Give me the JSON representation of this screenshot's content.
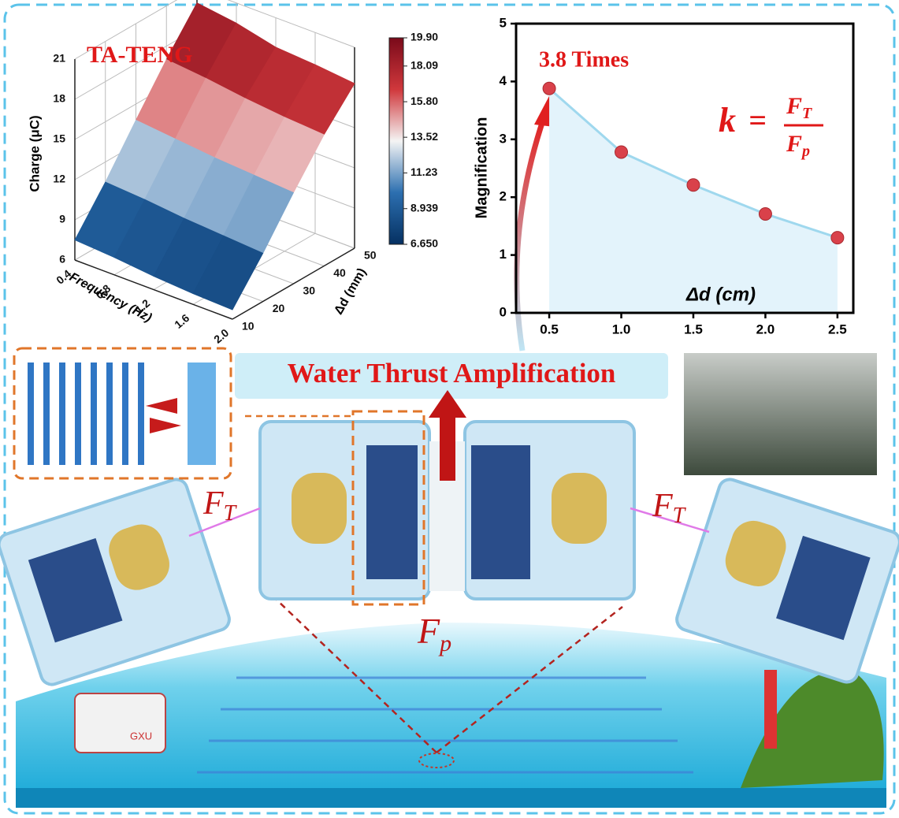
{
  "chart_data": [
    {
      "type": "surface",
      "title": "TA-TENG",
      "x_label": "Frequency (Hz)",
      "y_label": "Δd (mm)",
      "z_label": "Charge (μC)",
      "x": [
        0.4,
        0.8,
        1.2,
        1.6,
        2.0
      ],
      "y": [
        10,
        20,
        30,
        40,
        50
      ],
      "z": [
        [
          7.5,
          7.3,
          7.0,
          6.8,
          6.7
        ],
        [
          10.5,
          10.3,
          10.0,
          9.8,
          9.6
        ],
        [
          13.8,
          13.5,
          13.2,
          13.0,
          12.8
        ],
        [
          17.0,
          16.7,
          16.3,
          16.0,
          15.8
        ],
        [
          19.9,
          19.5,
          18.8,
          18.6,
          18.3
        ]
      ],
      "xlim": [
        0.4,
        2.0
      ],
      "ylim": [
        10,
        50
      ],
      "zlim": [
        6,
        21
      ],
      "xticks": [
        0.4,
        0.8,
        1.2,
        1.6,
        {
          "value": 2,
          "label": "2.0"
        }
      ],
      "yticks": [
        10,
        20,
        30,
        40,
        50
      ],
      "zticks": [
        6,
        9,
        12,
        15,
        18,
        21
      ],
      "clim": [
        6.65,
        19.9
      ],
      "cticks": [
        {
          "value": 19.9,
          "label": "19.90"
        },
        18.09,
        {
          "value": 15.8,
          "label": "15.80"
        },
        13.52,
        11.23,
        8.939,
        {
          "value": 6.65,
          "label": "6.650"
        }
      ],
      "colormap": [
        "#053061",
        "#2c6fb0",
        "#f4f4f4",
        "#d0383c",
        "#7a0a1a"
      ]
    },
    {
      "type": "scatter",
      "y_label": "Magnification",
      "x_label": "Δd (cm)",
      "annotation": "3.8 Times",
      "formula": {
        "lhs": "k",
        "eq": "=",
        "num": "F",
        "num_sub": "T",
        "den": "F",
        "den_sub": "p"
      },
      "x": [
        0.5,
        1.0,
        1.5,
        2.0,
        2.5
      ],
      "values": [
        3.88,
        2.78,
        2.21,
        1.71,
        1.3
      ],
      "xlim": [
        0.27,
        2.61
      ],
      "ylim": [
        0,
        5
      ],
      "xticks": [
        0.5,
        {
          "value": 1,
          "label": "1.0"
        },
        1.5,
        {
          "value": 2,
          "label": "2.0"
        },
        2.5
      ],
      "yticks": [
        0,
        1,
        2,
        3,
        4,
        5
      ],
      "color": "#d9414a",
      "line_color": "#9fd8ee",
      "fill_color": "#e3f3fb"
    }
  ],
  "illustration": {
    "banner": "Water Thrust Amplification",
    "force_left": {
      "main": "F",
      "sub": "T"
    },
    "force_right": {
      "main": "F",
      "sub": "T"
    },
    "force_bottom": {
      "main": "F",
      "sub": "p"
    },
    "ship_label": "GXU"
  }
}
